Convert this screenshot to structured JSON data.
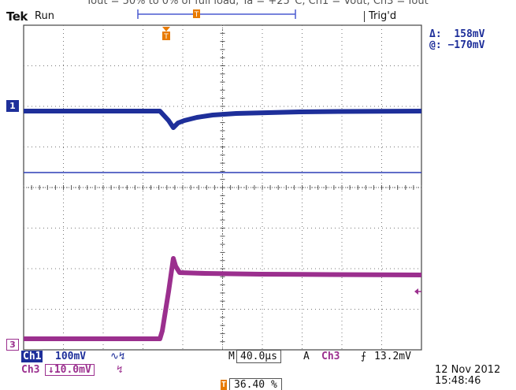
{
  "caption": "Iout = 50% to 0% of full load, Ta = +25°C, Ch1 = Vout, Ch3 = Iout",
  "header": {
    "brand": "Tek",
    "run_state": "Run",
    "trigger_state": "Trig'd",
    "trigger_position_icon": "T"
  },
  "cursor_readout": {
    "delta_label": "Δ:",
    "delta_value": "158mV",
    "at_label": "@:",
    "at_value": "−170mV"
  },
  "channels": {
    "ch1": {
      "tag": "Ch1",
      "scale": "100mV",
      "coupling_icon": "∿↯",
      "marker": "1",
      "color": "#1e2f9a"
    },
    "ch3": {
      "tag": "Ch3",
      "scale": "↓10.0mV",
      "coupling_icon": "↯",
      "marker": "3",
      "color": "#9b2f8e"
    }
  },
  "timebase": {
    "label": "M",
    "value": "40.0µs"
  },
  "trigger": {
    "mode": "A",
    "source": "Ch3",
    "slope": "⨍",
    "level": "13.2mV"
  },
  "horizontal_position": {
    "icon": "T",
    "value": "36.40 %"
  },
  "timestamp": {
    "date": "12 Nov 2012",
    "time": "15:48:46"
  },
  "colors": {
    "grid": "#777777",
    "ch1": "#1e2f9a",
    "ch3": "#9b2f8e",
    "trigger": "#e87a00"
  }
}
